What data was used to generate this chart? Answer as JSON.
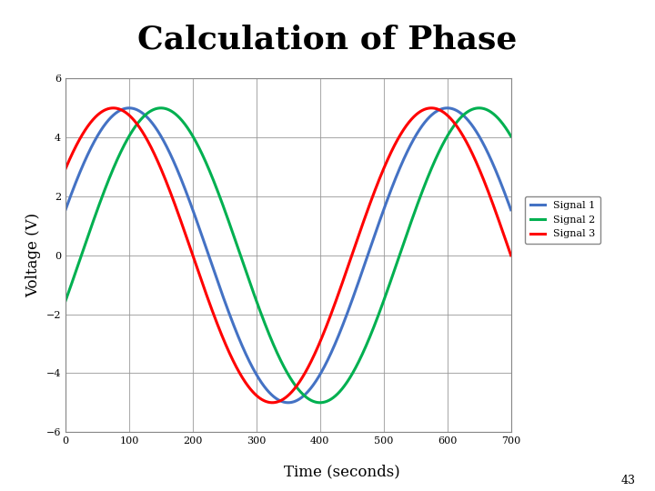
{
  "title": "Calculation of Phase",
  "xlabel": "Time (seconds)",
  "ylabel": "Voltage (V)",
  "xlim": [
    0,
    700
  ],
  "ylim": [
    -6,
    6
  ],
  "xticks": [
    0,
    100,
    200,
    300,
    400,
    500,
    600,
    700
  ],
  "yticks": [
    -6,
    -4,
    -2,
    0,
    2,
    4,
    6
  ],
  "amplitude": 5,
  "period": 500,
  "signal1_phase_deg": 18,
  "signal2_phase_deg": -18,
  "signal3_phase_deg": 36,
  "signal1_color": "#4472C4",
  "signal2_color": "#00B050",
  "signal3_color": "#FF0000",
  "signal1_label": "Signal 1",
  "signal2_label": "Signal 2",
  "signal3_label": "Signal 3",
  "linewidth": 2.2,
  "title_fontsize": 26,
  "title_fontweight": "bold",
  "label_fontsize": 12,
  "tick_fontsize": 8,
  "legend_fontsize": 8,
  "background_color": "#FFFFFF",
  "grid_color": "#999999",
  "grid_alpha": 0.8,
  "grid_linewidth": 0.8,
  "fig_number": "43"
}
